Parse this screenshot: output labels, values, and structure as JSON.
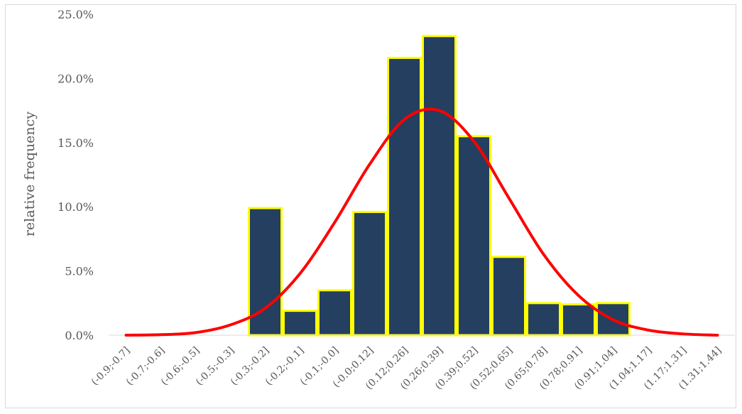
{
  "chart_data": {
    "type": "bar",
    "ylabel": "relative frequency",
    "xlabel": "",
    "ylim": [
      0,
      25
    ],
    "y_tick_format": "percent_1dp",
    "y_ticks": [
      0,
      5,
      10,
      15,
      20,
      25
    ],
    "grid": false,
    "legend": "none",
    "categories": [
      "(-0.9;-0.7]",
      "(-0.7;-0.6]",
      "(-0.6;-0.5]",
      "(-0.5;-0.3]",
      "(-0.3;-0.2]",
      "(-0.2;-0.1]",
      "(-0.1;-0.0]",
      "(-0.0;0.12]",
      "(0.12;0.26]",
      "(0.26;0.39]",
      "(0.39;0.52]",
      "(0.52;0.65]",
      "(0.65;0.78]",
      "(0.78;0.91]",
      "(0.91;1.04]",
      "(1.04;1.17]",
      "(1.17;1.31]",
      "(1.31;1.44]"
    ],
    "series": [
      {
        "type": "bar",
        "values": [
          0,
          0,
          0,
          0,
          9.9,
          1.9,
          3.5,
          9.6,
          21.6,
          23.3,
          15.5,
          6.1,
          2.5,
          2.4,
          2.5,
          0,
          0,
          0
        ]
      },
      {
        "type": "line",
        "smooth": true,
        "values": [
          0.0,
          0.04,
          0.2,
          0.8,
          2.1,
          4.8,
          8.8,
          13.3,
          16.8,
          17.5,
          15.1,
          10.7,
          6.3,
          3.1,
          1.2,
          0.4,
          0.1,
          0.0
        ]
      }
    ],
    "colors": {
      "bar_fill": "#243F60",
      "bar_stroke": "#FFFF00",
      "line": "#FF0000",
      "axis": "#d9d9d9",
      "text": "#595959"
    }
  }
}
